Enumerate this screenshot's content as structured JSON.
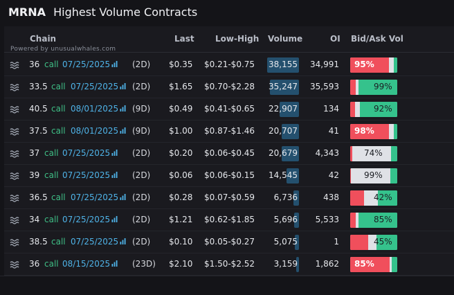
{
  "title": {
    "ticker": "MRNA",
    "text": "Highest Volume Contracts"
  },
  "watermark": "Powered by unusualwhales.com",
  "columns": {
    "chain": "Chain",
    "last": "Last",
    "lowhigh": "Low-High",
    "volume": "Volume",
    "oi": "OI",
    "bidask": "Bid/Ask Vol"
  },
  "colors": {
    "call": "#3fbf86",
    "expiry": "#4fb3e8",
    "bid": "#f04f5c",
    "ask": "#35c28c",
    "volume_bar": "#24506e"
  },
  "rows": [
    {
      "strike": "36",
      "type": "call",
      "expiry": "07/25/2025",
      "days": "(2D)",
      "last": "$0.35",
      "lowhigh": "$0.21-$0.75",
      "volume": "38,155",
      "volume_value": 38155,
      "oi": "34,991",
      "red": 0.82,
      "mid": 0.11,
      "green": 0.07,
      "label": "95%",
      "label_side": "left"
    },
    {
      "strike": "33.5",
      "type": "call",
      "expiry": "07/25/2025",
      "days": "(2D)",
      "last": "$1.65",
      "lowhigh": "$0.70-$2.28",
      "volume": "35,247",
      "volume_value": 35247,
      "oi": "35,593",
      "red": 0.12,
      "mid": 0.06,
      "green": 0.82,
      "label": "99%",
      "label_side": "right"
    },
    {
      "strike": "40.5",
      "type": "call",
      "expiry": "08/01/2025",
      "days": "(9D)",
      "last": "$0.49",
      "lowhigh": "$0.41-$0.65",
      "volume": "22,907",
      "volume_value": 22907,
      "oi": "134",
      "red": 0.1,
      "mid": 0.1,
      "green": 0.8,
      "label": "92%",
      "label_side": "right"
    },
    {
      "strike": "37.5",
      "type": "call",
      "expiry": "08/01/2025",
      "days": "(9D)",
      "last": "$1.00",
      "lowhigh": "$0.87-$1.46",
      "volume": "20,707",
      "volume_value": 20707,
      "oi": "41",
      "red": 0.82,
      "mid": 0.1,
      "green": 0.08,
      "label": "98%",
      "label_side": "left"
    },
    {
      "strike": "37",
      "type": "call",
      "expiry": "07/25/2025",
      "days": "(2D)",
      "last": "$0.20",
      "lowhigh": "$0.06-$0.45",
      "volume": "20,679",
      "volume_value": 20679,
      "oi": "4,343",
      "red": 0.04,
      "mid": 0.82,
      "green": 0.14,
      "label": "74%",
      "label_side": "mid"
    },
    {
      "strike": "39",
      "type": "call",
      "expiry": "07/25/2025",
      "days": "(2D)",
      "last": "$0.06",
      "lowhigh": "$0.06-$0.15",
      "volume": "14,545",
      "volume_value": 14545,
      "oi": "42",
      "red": 0.02,
      "mid": 0.84,
      "green": 0.14,
      "label": "99%",
      "label_side": "mid"
    },
    {
      "strike": "36.5",
      "type": "call",
      "expiry": "07/25/2025",
      "days": "(2D)",
      "last": "$0.28",
      "lowhigh": "$0.07-$0.59",
      "volume": "6,736",
      "volume_value": 6736,
      "oi": "438",
      "red": 0.3,
      "mid": 0.29,
      "green": 0.41,
      "label": "42%",
      "label_side": "right"
    },
    {
      "strike": "34",
      "type": "call",
      "expiry": "07/25/2025",
      "days": "(2D)",
      "last": "$1.21",
      "lowhigh": "$0.62-$1.85",
      "volume": "5,696",
      "volume_value": 5696,
      "oi": "5,533",
      "red": 0.12,
      "mid": 0.06,
      "green": 0.82,
      "label": "85%",
      "label_side": "right"
    },
    {
      "strike": "38.5",
      "type": "call",
      "expiry": "07/25/2025",
      "days": "(2D)",
      "last": "$0.10",
      "lowhigh": "$0.05-$0.27",
      "volume": "5,075",
      "volume_value": 5075,
      "oi": "1",
      "red": 0.38,
      "mid": 0.18,
      "green": 0.44,
      "label": "45%",
      "label_side": "right"
    },
    {
      "strike": "36",
      "type": "call",
      "expiry": "08/15/2025",
      "days": "(23D)",
      "last": "$2.10",
      "lowhigh": "$1.50-$2.52",
      "volume": "3,159",
      "volume_value": 3159,
      "oi": "1,862",
      "red": 0.84,
      "mid": 0.05,
      "green": 0.11,
      "label": "85%",
      "label_side": "left"
    }
  ]
}
